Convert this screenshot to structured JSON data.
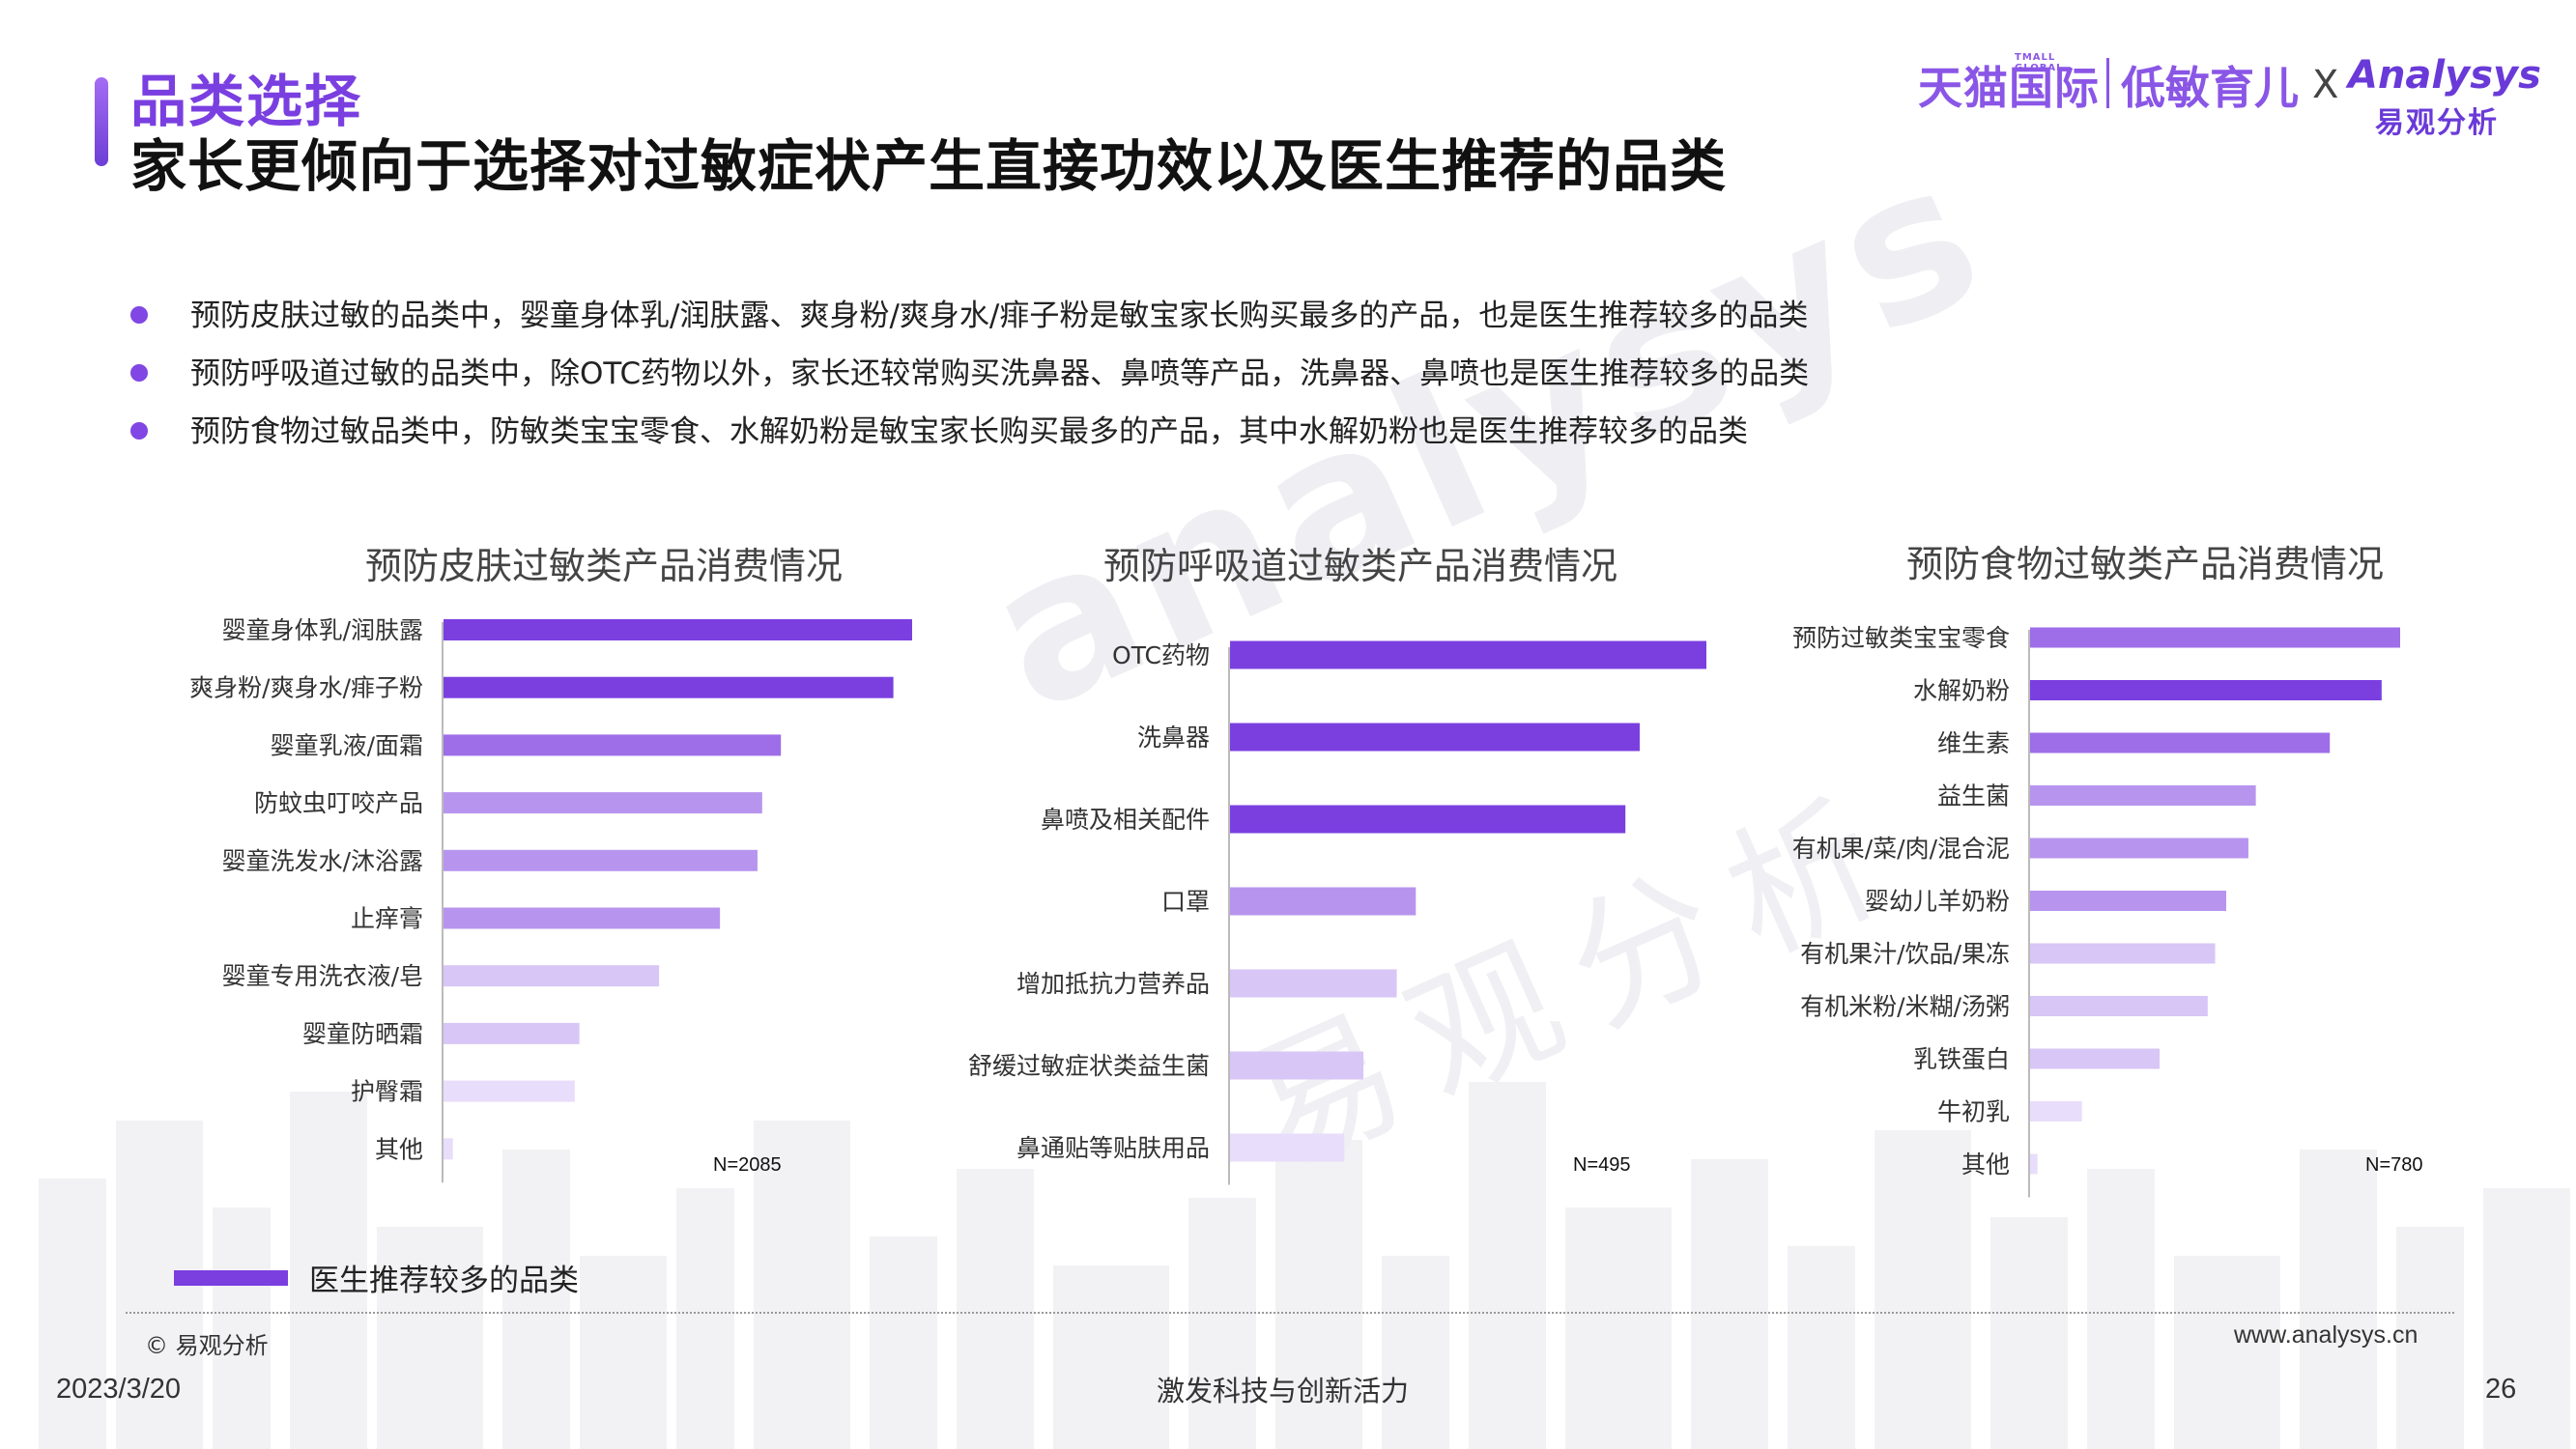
{
  "header": {
    "section_title": "品类选择",
    "headline": "家长更倾向于选择对过敏症状产生直接功效以及医生推荐的品类",
    "logo_tmall": "天猫国际",
    "logo_tmall_small": "TMALL GLOBAL",
    "logo_low": "低敏育儿",
    "logo_x": "X",
    "logo_analysys": "Analysys",
    "logo_analysys_cn": "易观分析"
  },
  "bullets": [
    "预防皮肤过敏的品类中，婴童身体乳/润肤露、爽身粉/爽身水/痱子粉是敏宝家长购买最多的产品，也是医生推荐较多的品类",
    "预防呼吸道过敏的品类中，除OTC药物以外，家长还较常购买洗鼻器、鼻喷等产品，洗鼻器、鼻喷也是医生推荐较多的品类",
    "预防食物过敏品类中，防敏类宝宝零食、水解奶粉是敏宝家长购买最多的产品，其中水解奶粉也是医生推荐较多的品类"
  ],
  "colors": {
    "recommended": "#7b3fe0",
    "level2": "#9e6ee8",
    "level3": "#b795ee",
    "level4": "#d7c6f6",
    "level5": "#e8ddfa",
    "axis": "#bbbbbb"
  },
  "chart_data": [
    {
      "type": "bar",
      "orientation": "horizontal",
      "title": "预防皮肤过敏类产品消费情况",
      "categories": [
        "婴童身体乳/润肤露",
        "爽身粉/爽身水/痱子粉",
        "婴童乳液/面霜",
        "防蚊虫叮咬产品",
        "婴童洗发水/沐浴露",
        "止痒膏",
        "婴童专用洗衣液/皂",
        "婴童防晒霜",
        "护臀霜",
        "其他"
      ],
      "values": [
        100,
        96,
        72,
        68,
        67,
        59,
        46,
        29,
        28,
        2
      ],
      "recommended": [
        true,
        true,
        false,
        false,
        false,
        false,
        false,
        false,
        false,
        false
      ],
      "sample": "N=2085"
    },
    {
      "type": "bar",
      "orientation": "horizontal",
      "title": "预防呼吸道过敏类产品消费情况",
      "categories": [
        "OTC药物",
        "洗鼻器",
        "鼻喷及相关配件",
        "口罩",
        "增加抵抗力营养品",
        "舒缓过敏症状类益生菌",
        "鼻通贴等贴肤用品"
      ],
      "values": [
        100,
        86,
        83,
        39,
        35,
        28,
        24
      ],
      "recommended": [
        true,
        true,
        true,
        false,
        false,
        false,
        false
      ],
      "sample": "N=495"
    },
    {
      "type": "bar",
      "orientation": "horizontal",
      "title": "预防食物过敏类产品消费情况",
      "categories": [
        "预防过敏类宝宝零食",
        "水解奶粉",
        "维生素",
        "益生菌",
        "有机果/菜/肉/混合泥",
        "婴幼儿羊奶粉",
        "有机果汁/饮品/果冻",
        "有机米粉/米糊/汤粥",
        "乳铁蛋白",
        "牛初乳",
        "其他"
      ],
      "values": [
        100,
        95,
        81,
        61,
        59,
        53,
        50,
        48,
        35,
        14,
        2
      ],
      "recommended": [
        false,
        true,
        false,
        false,
        false,
        false,
        false,
        false,
        false,
        false,
        false
      ],
      "sample": "N=780"
    }
  ],
  "legend": {
    "label": "医生推荐较多的品类"
  },
  "footer": {
    "copyright": "© 易观分析",
    "website": "www.analysys.cn",
    "date": "2023/3/20",
    "slogan": "激发科技与创新活力",
    "page": "26"
  },
  "watermark": {
    "text": "analysys",
    "text_cn": "易观分析"
  }
}
